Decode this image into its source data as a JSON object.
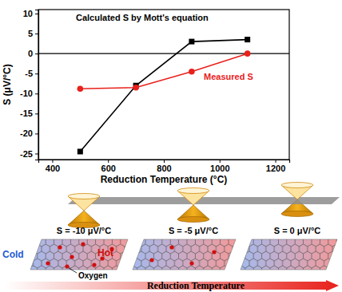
{
  "chart_data": {
    "type": "line",
    "x_label": "Reduction Temperature (°C)",
    "y_label": "S (μV/°C)",
    "x": [
      500,
      700,
      900,
      1100
    ],
    "series": [
      {
        "name": "Calculated S by Mott's equation",
        "color": "#000000",
        "marker": "square",
        "values": [
          -24.5,
          -8,
          3,
          3.5
        ]
      },
      {
        "name": "Measured S",
        "color": "#e8211c",
        "marker": "circle",
        "values": [
          -8.8,
          -8.5,
          -4.5,
          0
        ]
      }
    ],
    "xlim": [
      350,
      1250
    ],
    "xticks": [
      400,
      600,
      800,
      1000,
      1200
    ],
    "ylim": [
      -26.5,
      11
    ],
    "yticks": [
      -25,
      -20,
      -15,
      -10,
      -5,
      0,
      5,
      10
    ],
    "zero_line": 0
  },
  "diagram": {
    "cones": [
      "S = -10 μV/°C",
      "S = -5 μV/°C",
      "S = 0 μV/°C"
    ],
    "cold_label": "Cold",
    "hot_label": "Hot",
    "oxygen_label": "Oxygen",
    "arrow_label": "Reduction Temperature"
  }
}
